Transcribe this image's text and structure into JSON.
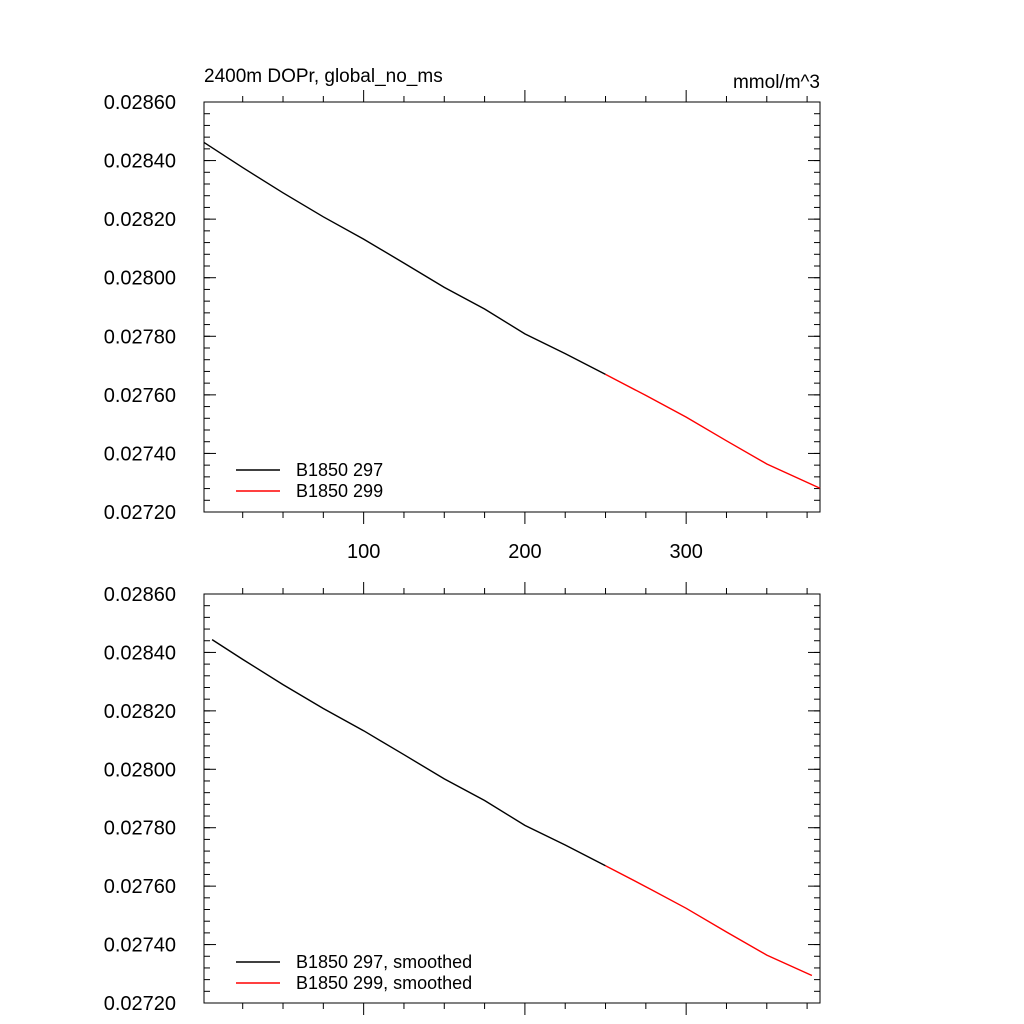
{
  "colors": {
    "series_297": "#000000",
    "series_299": "#ff0000"
  },
  "chart_data": [
    {
      "type": "line",
      "title": "2400m DOPr, global_no_ms",
      "units_label": "mmol/m^3",
      "xlim": [
        1,
        383
      ],
      "ylim": [
        0.0272,
        0.0286
      ],
      "xticks": [
        100,
        200,
        300
      ],
      "xticks_labeled": true,
      "yticks": [
        0.0272,
        0.0274,
        0.0276,
        0.0278,
        0.028,
        0.0282,
        0.0284,
        0.0286
      ],
      "ytick_labels": [
        "0.02720",
        "0.02740",
        "0.02760",
        "0.02780",
        "0.02800",
        "0.02820",
        "0.02840",
        "0.02860"
      ],
      "legend_position": "bottom-left",
      "series": [
        {
          "name": "B1850 297",
          "color": "#000000",
          "x": [
            1,
            25,
            50,
            75,
            100,
            125,
            150,
            175,
            200,
            225,
            250
          ],
          "y": [
            0.028462,
            0.028376,
            0.02829,
            0.028208,
            0.028132,
            0.02805,
            0.027967,
            0.027893,
            0.027808,
            0.027741,
            0.02767
          ]
        },
        {
          "name": "B1850 299",
          "color": "#ff0000",
          "x": [
            250,
            275,
            300,
            325,
            350,
            383
          ],
          "y": [
            0.02767,
            0.027598,
            0.027524,
            0.027443,
            0.027364,
            0.027281
          ]
        }
      ]
    },
    {
      "type": "line",
      "xlim": [
        1,
        383
      ],
      "ylim": [
        0.0272,
        0.0286
      ],
      "xticks": [
        100,
        200,
        300
      ],
      "xticks_labeled": false,
      "yticks": [
        0.0272,
        0.0274,
        0.0276,
        0.0278,
        0.028,
        0.0282,
        0.0284,
        0.0286
      ],
      "ytick_labels": [
        "0.02720",
        "0.02740",
        "0.02760",
        "0.02780",
        "0.02800",
        "0.02820",
        "0.02840",
        "0.02860"
      ],
      "legend_position": "bottom-left",
      "series": [
        {
          "name": "B1850 297, smoothed",
          "color": "#000000",
          "x": [
            6,
            25,
            50,
            75,
            100,
            125,
            150,
            175,
            200,
            225,
            250
          ],
          "y": [
            0.028444,
            0.028376,
            0.02829,
            0.028208,
            0.028132,
            0.02805,
            0.027967,
            0.027893,
            0.027808,
            0.027741,
            0.02767
          ]
        },
        {
          "name": "B1850 299, smoothed",
          "color": "#ff0000",
          "x": [
            250,
            275,
            300,
            325,
            350,
            378
          ],
          "y": [
            0.02767,
            0.027598,
            0.027524,
            0.027443,
            0.027364,
            0.027294
          ]
        }
      ]
    }
  ]
}
